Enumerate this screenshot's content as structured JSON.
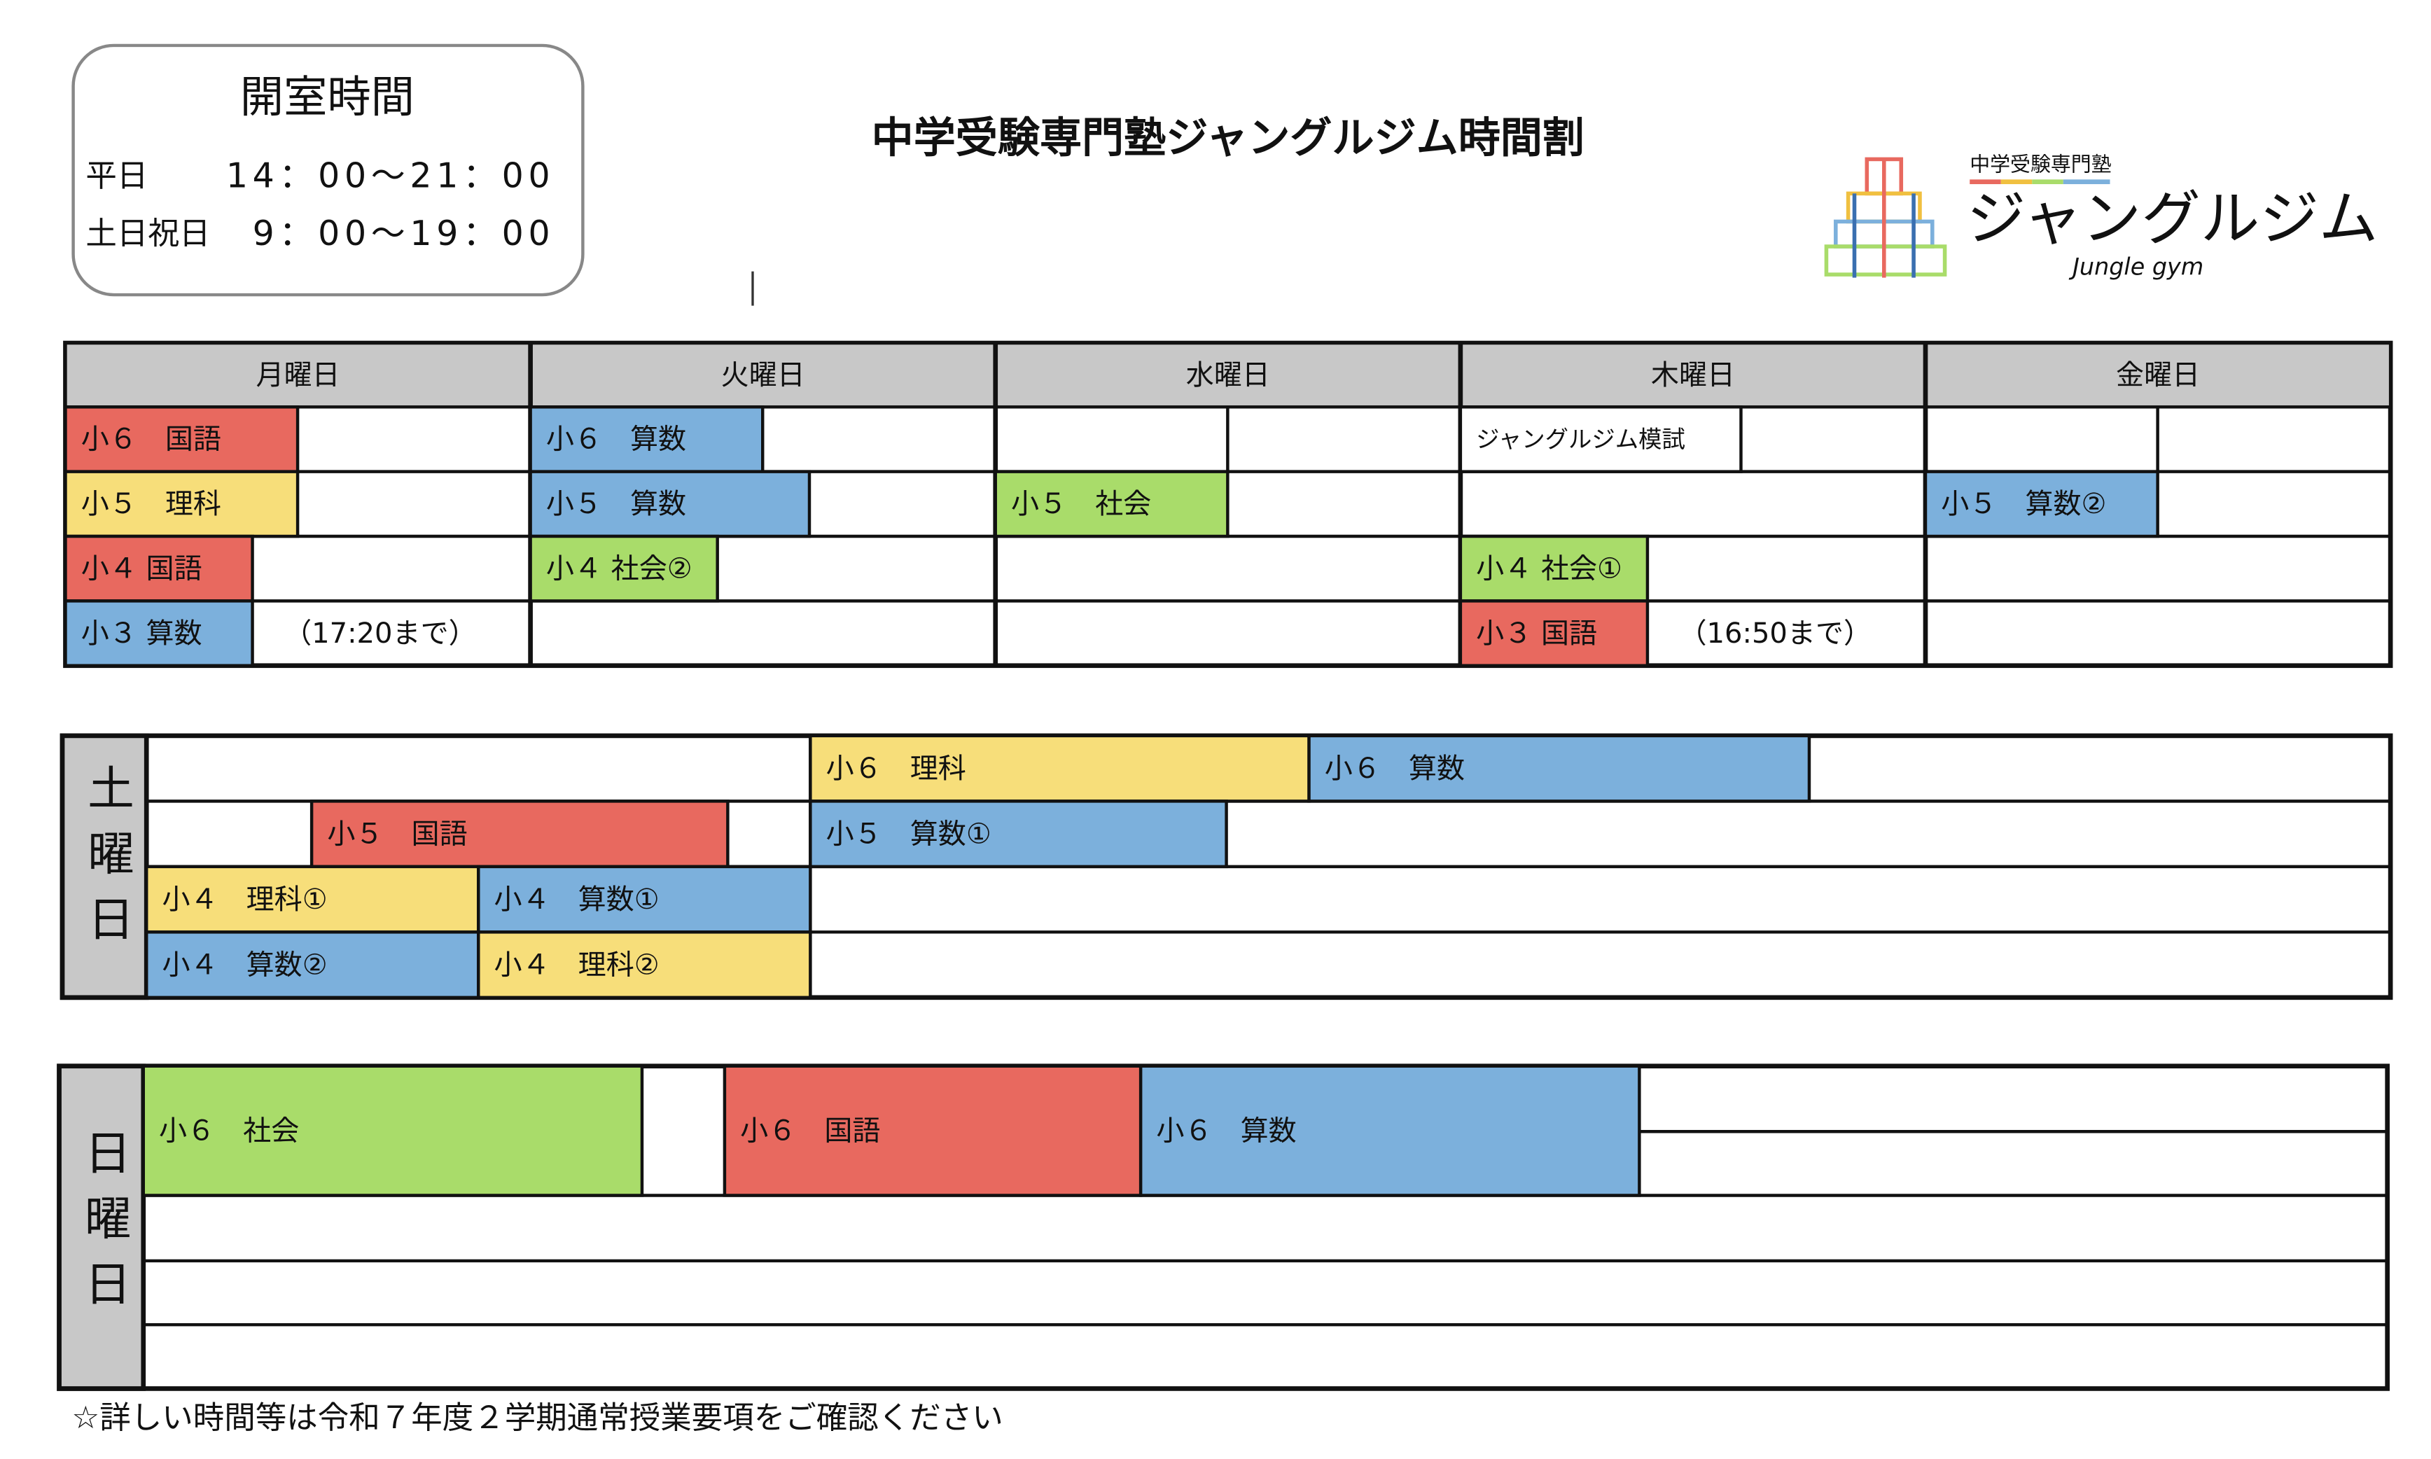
{
  "header": {
    "title": "中学受験専門塾ジャングルジム時間割",
    "hours": {
      "title": "開室時間",
      "rows": [
        {
          "label": "平日",
          "time": "14：00〜21：00"
        },
        {
          "label": "土日祝日",
          "time": "9：00〜19：00"
        }
      ]
    },
    "logo": {
      "tagline": "中学受験専門塾",
      "name": "ジャングルジム",
      "sub": "Jungle gym"
    }
  },
  "weekday": {
    "columns": [
      {
        "name": "月曜日",
        "cells": [
          {
            "label": "小６　国語",
            "color": "#e8695f"
          },
          {
            "label": "小５　理科",
            "color": "#f7de7a"
          },
          {
            "label": "小４ 国語",
            "color": "#e8695f"
          },
          {
            "label": "小３ 算数",
            "color": "#7cb0dc"
          },
          {
            "label": "（17:20まで）",
            "color": "#ffffff"
          }
        ]
      },
      {
        "name": "火曜日",
        "cells": [
          {
            "label": "小６　算数",
            "color": "#7cb0dc"
          },
          {
            "label": "小５　算数",
            "color": "#7cb0dc"
          },
          {
            "label": "小４ 社会②",
            "color": "#a9dc6a"
          }
        ]
      },
      {
        "name": "水曜日",
        "cells": [
          {
            "label": "小５　社会",
            "color": "#a9dc6a"
          }
        ]
      },
      {
        "name": "木曜日",
        "cells": [
          {
            "label": "ジャングルジム模試",
            "color": "#ffffff"
          },
          {
            "label": "小４ 社会①",
            "color": "#a9dc6a"
          },
          {
            "label": "小３ 国語",
            "color": "#e8695f"
          },
          {
            "label": "（16:50まで）",
            "color": "#ffffff"
          }
        ]
      },
      {
        "name": "金曜日",
        "cells": [
          {
            "label": "小５　算数②",
            "color": "#7cb0dc"
          }
        ]
      }
    ]
  },
  "saturday": {
    "label": "土曜日",
    "cells": [
      {
        "label": "小６　理科",
        "color": "#f7de7a"
      },
      {
        "label": "小６　算数",
        "color": "#7cb0dc"
      },
      {
        "label": "小５　国語",
        "color": "#e8695f"
      },
      {
        "label": "小５　算数①",
        "color": "#7cb0dc"
      },
      {
        "label": "小４　理科①",
        "color": "#f7de7a"
      },
      {
        "label": "小４　算数①",
        "color": "#7cb0dc"
      },
      {
        "label": "小４　算数②",
        "color": "#7cb0dc"
      },
      {
        "label": "小４　理科②",
        "color": "#f7de7a"
      }
    ]
  },
  "sunday": {
    "label": "日曜日",
    "cells": [
      {
        "label": "小６　社会",
        "color": "#a9dc6a"
      },
      {
        "label": "小６　国語",
        "color": "#e8695f"
      },
      {
        "label": "小６　算数",
        "color": "#7cb0dc"
      }
    ]
  },
  "footer": "☆詳しい時間等は令和７年度２学期通常授業要項をご確認ください"
}
